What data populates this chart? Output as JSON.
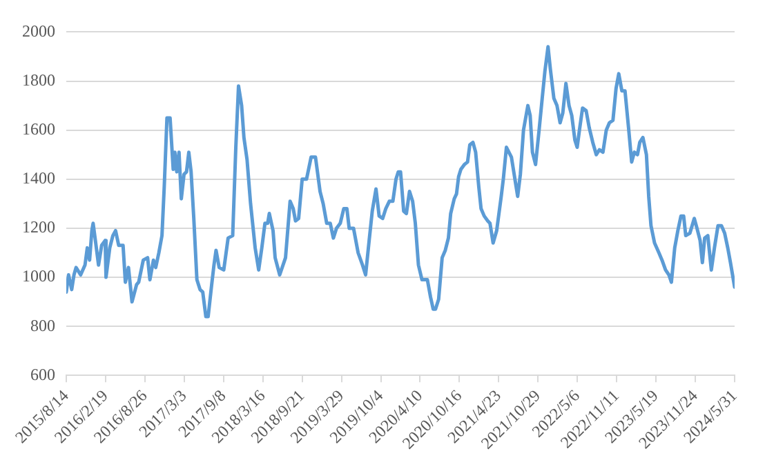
{
  "chart_data": {
    "type": "line",
    "color": "#5b9bd5",
    "marker": "none",
    "line_style": "solid",
    "grid": "y",
    "legend": false,
    "x": [
      "2015-08-14",
      "2015-08-25",
      "2015-09-09",
      "2015-09-20",
      "2015-09-30",
      "2015-10-22",
      "2015-11-12",
      "2015-11-23",
      "2015-12-04",
      "2015-12-15",
      "2015-12-21",
      "2016-01-01",
      "2016-01-16",
      "2016-01-31",
      "2016-02-17",
      "2016-02-21",
      "2016-03-10",
      "2016-03-25",
      "2016-04-07",
      "2016-04-22",
      "2016-05-13",
      "2016-05-24",
      "2016-06-08",
      "2016-06-25",
      "2016-07-17",
      "2016-07-27",
      "2016-08-18",
      "2016-09-08",
      "2016-09-19",
      "2016-10-06",
      "2016-10-17",
      "2016-11-01",
      "2016-11-16",
      "2016-11-27",
      "2016-12-10",
      "2016-12-25",
      "2017-01-09",
      "2017-01-17",
      "2017-01-26",
      "2017-02-06",
      "2017-02-17",
      "2017-03-02",
      "2017-03-14",
      "2017-03-25",
      "2017-04-05",
      "2017-04-18",
      "2017-05-03",
      "2017-05-18",
      "2017-05-31",
      "2017-06-15",
      "2017-06-26",
      "2017-07-13",
      "2017-07-24",
      "2017-08-03",
      "2017-08-18",
      "2017-09-09",
      "2017-09-30",
      "2017-10-22",
      "2017-11-06",
      "2017-11-19",
      "2017-12-04",
      "2017-12-15",
      "2017-12-30",
      "2018-01-16",
      "2018-02-07",
      "2018-02-24",
      "2018-03-11",
      "2018-03-26",
      "2018-04-08",
      "2018-04-16",
      "2018-05-04",
      "2018-05-14",
      "2018-06-05",
      "2018-07-03",
      "2018-07-25",
      "2018-08-09",
      "2018-08-20",
      "2018-09-04",
      "2018-09-21",
      "2018-10-12",
      "2018-11-03",
      "2018-11-24",
      "2018-12-16",
      "2018-12-31",
      "2019-01-17",
      "2019-02-03",
      "2019-02-18",
      "2019-03-05",
      "2019-03-23",
      "2019-04-09",
      "2019-04-24",
      "2019-05-05",
      "2019-05-26",
      "2019-06-17",
      "2019-07-08",
      "2019-07-23",
      "2019-08-09",
      "2019-08-24",
      "2019-09-11",
      "2019-09-26",
      "2019-10-13",
      "2019-10-28",
      "2019-11-14",
      "2019-12-01",
      "2019-12-16",
      "2019-12-27",
      "2020-01-07",
      "2020-01-22",
      "2020-02-04",
      "2020-02-19",
      "2020-03-05",
      "2020-03-18",
      "2020-04-02",
      "2020-04-19",
      "2020-05-15",
      "2020-05-30",
      "2020-06-12",
      "2020-06-23",
      "2020-07-08",
      "2020-07-25",
      "2020-08-09",
      "2020-08-24",
      "2020-09-04",
      "2020-09-21",
      "2020-10-02",
      "2020-10-12",
      "2020-10-23",
      "2020-11-09",
      "2020-11-24",
      "2020-12-05",
      "2020-12-20",
      "2021-01-02",
      "2021-01-17",
      "2021-01-28",
      "2021-02-12",
      "2021-03-01",
      "2021-03-12",
      "2021-03-27",
      "2021-04-13",
      "2021-04-24",
      "2021-05-05",
      "2021-05-15",
      "2021-05-30",
      "2021-06-23",
      "2021-07-08",
      "2021-07-23",
      "2021-08-05",
      "2021-08-20",
      "2021-09-10",
      "2021-09-21",
      "2021-10-02",
      "2021-10-17",
      "2021-11-03",
      "2021-11-18",
      "2021-12-01",
      "2021-12-16",
      "2021-12-27",
      "2022-01-13",
      "2022-01-28",
      "2022-02-12",
      "2022-02-25",
      "2022-03-12",
      "2022-03-27",
      "2022-04-09",
      "2022-04-24",
      "2022-05-05",
      "2022-05-16",
      "2022-05-31",
      "2022-06-17",
      "2022-07-02",
      "2022-07-19",
      "2022-08-05",
      "2022-08-20",
      "2022-09-06",
      "2022-09-22",
      "2022-10-07",
      "2022-10-24",
      "2022-11-08",
      "2022-11-21",
      "2022-12-06",
      "2022-12-21",
      "2023-01-07",
      "2023-01-22",
      "2023-02-04",
      "2023-02-19",
      "2023-03-02",
      "2023-03-17",
      "2023-04-03",
      "2023-04-14",
      "2023-04-25",
      "2023-05-12",
      "2023-06-02",
      "2023-06-17",
      "2023-07-04",
      "2023-07-20",
      "2023-08-01",
      "2023-08-17",
      "2023-09-01",
      "2023-09-16",
      "2023-09-29",
      "2023-10-09",
      "2023-10-29",
      "2023-11-19",
      "2023-12-02",
      "2023-12-17",
      "2023-12-28",
      "2024-01-08",
      "2024-01-23",
      "2024-02-09",
      "2024-02-24",
      "2024-03-12",
      "2024-03-29",
      "2024-04-13",
      "2024-04-28",
      "2024-05-11",
      "2024-05-31"
    ],
    "values": [
      940,
      1010,
      950,
      1010,
      1040,
      1010,
      1050,
      1120,
      1070,
      1190,
      1220,
      1150,
      1050,
      1130,
      1150,
      1000,
      1120,
      1170,
      1190,
      1130,
      1130,
      980,
      1040,
      900,
      970,
      980,
      1070,
      1080,
      990,
      1070,
      1040,
      1100,
      1170,
      1370,
      1650,
      1650,
      1440,
      1510,
      1430,
      1510,
      1320,
      1420,
      1430,
      1510,
      1430,
      1240,
      990,
      950,
      940,
      840,
      840,
      970,
      1050,
      1110,
      1040,
      1030,
      1160,
      1170,
      1530,
      1780,
      1700,
      1570,
      1480,
      1300,
      1120,
      1030,
      1120,
      1220,
      1220,
      1260,
      1190,
      1080,
      1010,
      1080,
      1310,
      1280,
      1230,
      1240,
      1400,
      1400,
      1490,
      1490,
      1350,
      1300,
      1220,
      1220,
      1160,
      1200,
      1220,
      1280,
      1280,
      1200,
      1200,
      1100,
      1050,
      1010,
      1150,
      1270,
      1360,
      1250,
      1240,
      1280,
      1310,
      1310,
      1400,
      1430,
      1430,
      1270,
      1260,
      1350,
      1310,
      1220,
      1050,
      990,
      990,
      920,
      870,
      870,
      910,
      1080,
      1110,
      1160,
      1260,
      1320,
      1340,
      1410,
      1440,
      1460,
      1470,
      1540,
      1550,
      1510,
      1370,
      1280,
      1250,
      1230,
      1220,
      1140,
      1190,
      1260,
      1330,
      1400,
      1530,
      1490,
      1410,
      1330,
      1420,
      1600,
      1700,
      1660,
      1510,
      1460,
      1600,
      1730,
      1840,
      1940,
      1850,
      1730,
      1700,
      1630,
      1670,
      1790,
      1700,
      1660,
      1560,
      1530,
      1600,
      1690,
      1680,
      1610,
      1550,
      1500,
      1520,
      1510,
      1600,
      1630,
      1640,
      1770,
      1830,
      1760,
      1760,
      1610,
      1470,
      1510,
      1500,
      1550,
      1570,
      1500,
      1330,
      1210,
      1140,
      1100,
      1070,
      1030,
      1010,
      980,
      1120,
      1190,
      1250,
      1250,
      1170,
      1180,
      1240,
      1200,
      1150,
      1060,
      1160,
      1170,
      1030,
      1120,
      1210,
      1210,
      1180,
      1120,
      1060,
      960
    ],
    "xlim": [
      "2015-08-14",
      "2024-05-31"
    ],
    "xticks": [
      {
        "value": "2015-08-14",
        "label": "2015/8/14"
      },
      {
        "value": "2016-02-19",
        "label": "2016/2/19"
      },
      {
        "value": "2016-08-26",
        "label": "2016/8/26"
      },
      {
        "value": "2017-03-03",
        "label": "2017/3/3"
      },
      {
        "value": "2017-09-08",
        "label": "2017/9/8"
      },
      {
        "value": "2018-03-16",
        "label": "2018/3/16"
      },
      {
        "value": "2018-09-21",
        "label": "2018/9/21"
      },
      {
        "value": "2019-03-29",
        "label": "2019/3/29"
      },
      {
        "value": "2019-10-04",
        "label": "2019/10/4"
      },
      {
        "value": "2020-04-10",
        "label": "2020/4/10"
      },
      {
        "value": "2020-10-16",
        "label": "2020/10/16"
      },
      {
        "value": "2021-04-23",
        "label": "2021/4/23"
      },
      {
        "value": "2021-10-29",
        "label": "2021/10/29"
      },
      {
        "value": "2022-05-06",
        "label": "2022/5/6"
      },
      {
        "value": "2022-11-11",
        "label": "2022/11/11"
      },
      {
        "value": "2023-05-19",
        "label": "2023/5/19"
      },
      {
        "value": "2023-11-24",
        "label": "2023/11/24"
      },
      {
        "value": "2024-05-31",
        "label": "2024/5/31"
      }
    ],
    "ylim": [
      600,
      2000
    ],
    "yticks": [
      600,
      800,
      1000,
      1200,
      1400,
      1600,
      1800,
      2000
    ]
  }
}
